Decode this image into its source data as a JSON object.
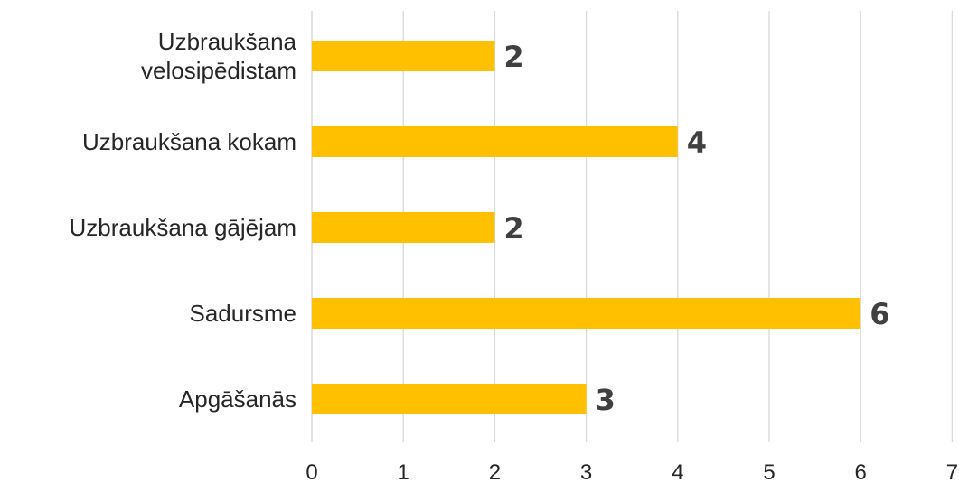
{
  "chart_data": {
    "type": "bar",
    "orientation": "horizontal",
    "categories": [
      [
        "Uzbraukšana",
        "velosipēdistam"
      ],
      [
        "Uzbraukšana kokam"
      ],
      [
        "Uzbraukšana gājējam"
      ],
      [
        "Sadursme"
      ],
      [
        "Apgāšanās"
      ]
    ],
    "values": [
      2,
      4,
      2,
      6,
      3
    ],
    "data_labels": [
      "2",
      "4",
      "2",
      "6",
      "3"
    ],
    "xlim": [
      0,
      7
    ],
    "xticks": [
      "0",
      "1",
      "2",
      "3",
      "4",
      "5",
      "6",
      "7"
    ],
    "title": "",
    "xlabel": "",
    "ylabel": "",
    "grid": true,
    "legend": "none",
    "bar_color": "#FFC000",
    "grid_color": "#D9D9D9"
  }
}
